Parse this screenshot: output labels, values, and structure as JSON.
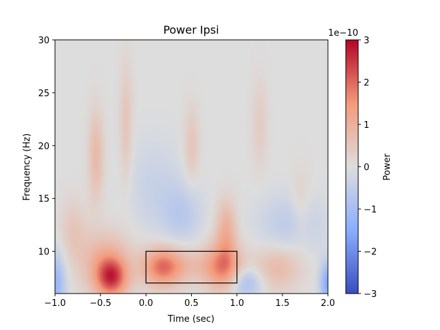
{
  "chart_data": {
    "type": "heatmap",
    "title": "Power Ipsi",
    "xlabel": "Time (sec)",
    "ylabel": "Frequency (Hz)",
    "xlim": [
      -1.0,
      2.0
    ],
    "ylim": [
      6,
      30
    ],
    "xticks": [
      -1.0,
      -0.5,
      0.0,
      0.5,
      1.0,
      1.5,
      2.0
    ],
    "xtick_labels": [
      "−1.0",
      "−0.5",
      "0.0",
      "0.5",
      "1.0",
      "1.5",
      "2.0"
    ],
    "yticks": [
      10,
      15,
      20,
      25,
      30
    ],
    "ytick_labels": [
      "10",
      "15",
      "20",
      "25",
      "30"
    ],
    "colormap": "coolwarm",
    "color_low": "#3b4cc0",
    "color_mid": "#dddddd",
    "color_high": "#b40426",
    "colorbar": {
      "label": "Power",
      "range": [
        -3,
        3
      ],
      "offset_label": "1e−10",
      "ticks": [
        -3,
        -2,
        -1,
        0,
        1,
        2,
        3
      ],
      "tick_labels": [
        "−3",
        "−2",
        "−1",
        "0",
        "1",
        "2",
        "3"
      ]
    },
    "highlight_rect": {
      "x_range": [
        0.0,
        1.0
      ],
      "y_range": [
        7,
        10
      ],
      "edge_color": "#000000"
    },
    "blobs": [
      {
        "t": -0.38,
        "f": 7.5,
        "amp": 2.1,
        "st": 0.12,
        "sf": 1.3
      },
      {
        "t": -0.45,
        "f": 9.0,
        "amp": 1.0,
        "st": 0.2,
        "sf": 2.0
      },
      {
        "t": 0.18,
        "f": 8.5,
        "amp": 1.7,
        "st": 0.15,
        "sf": 1.3
      },
      {
        "t": 0.85,
        "f": 8.5,
        "amp": 1.5,
        "st": 0.14,
        "sf": 1.6
      },
      {
        "t": 0.88,
        "f": 12.0,
        "amp": 1.0,
        "st": 0.08,
        "sf": 2.0
      },
      {
        "t": 0.5,
        "f": 8.7,
        "amp": 0.6,
        "st": 0.3,
        "sf": 1.2
      },
      {
        "t": 1.45,
        "f": 8.5,
        "amp": 0.8,
        "st": 0.18,
        "sf": 1.5
      },
      {
        "t": -0.55,
        "f": 19.0,
        "amp": 0.8,
        "st": 0.06,
        "sf": 3.0
      },
      {
        "t": -0.22,
        "f": 22.0,
        "amp": 0.55,
        "st": 0.05,
        "sf": 4.0
      },
      {
        "t": 0.5,
        "f": 20.0,
        "amp": 0.55,
        "st": 0.06,
        "sf": 2.5
      },
      {
        "t": 1.25,
        "f": 22.0,
        "amp": 0.4,
        "st": 0.06,
        "sf": 3.0
      },
      {
        "t": -0.8,
        "f": 12.0,
        "amp": 0.5,
        "st": 0.1,
        "sf": 2.0
      },
      {
        "t": 1.7,
        "f": 14.0,
        "amp": 0.4,
        "st": 0.08,
        "sf": 2.5
      },
      {
        "t": 0.4,
        "f": 13.5,
        "amp": -0.6,
        "st": 0.15,
        "sf": 2.0
      },
      {
        "t": 1.1,
        "f": 7.0,
        "amp": -1.0,
        "st": 0.12,
        "sf": 1.0
      },
      {
        "t": -1.0,
        "f": 7.0,
        "amp": -1.3,
        "st": 0.08,
        "sf": 2.0
      },
      {
        "t": 2.0,
        "f": 7.0,
        "amp": -1.6,
        "st": 0.06,
        "sf": 1.4
      },
      {
        "t": 1.6,
        "f": 12.5,
        "amp": -0.6,
        "st": 0.25,
        "sf": 2.0
      },
      {
        "t": 0.1,
        "f": 16.0,
        "amp": -0.4,
        "st": 0.2,
        "sf": 3.0
      }
    ]
  }
}
